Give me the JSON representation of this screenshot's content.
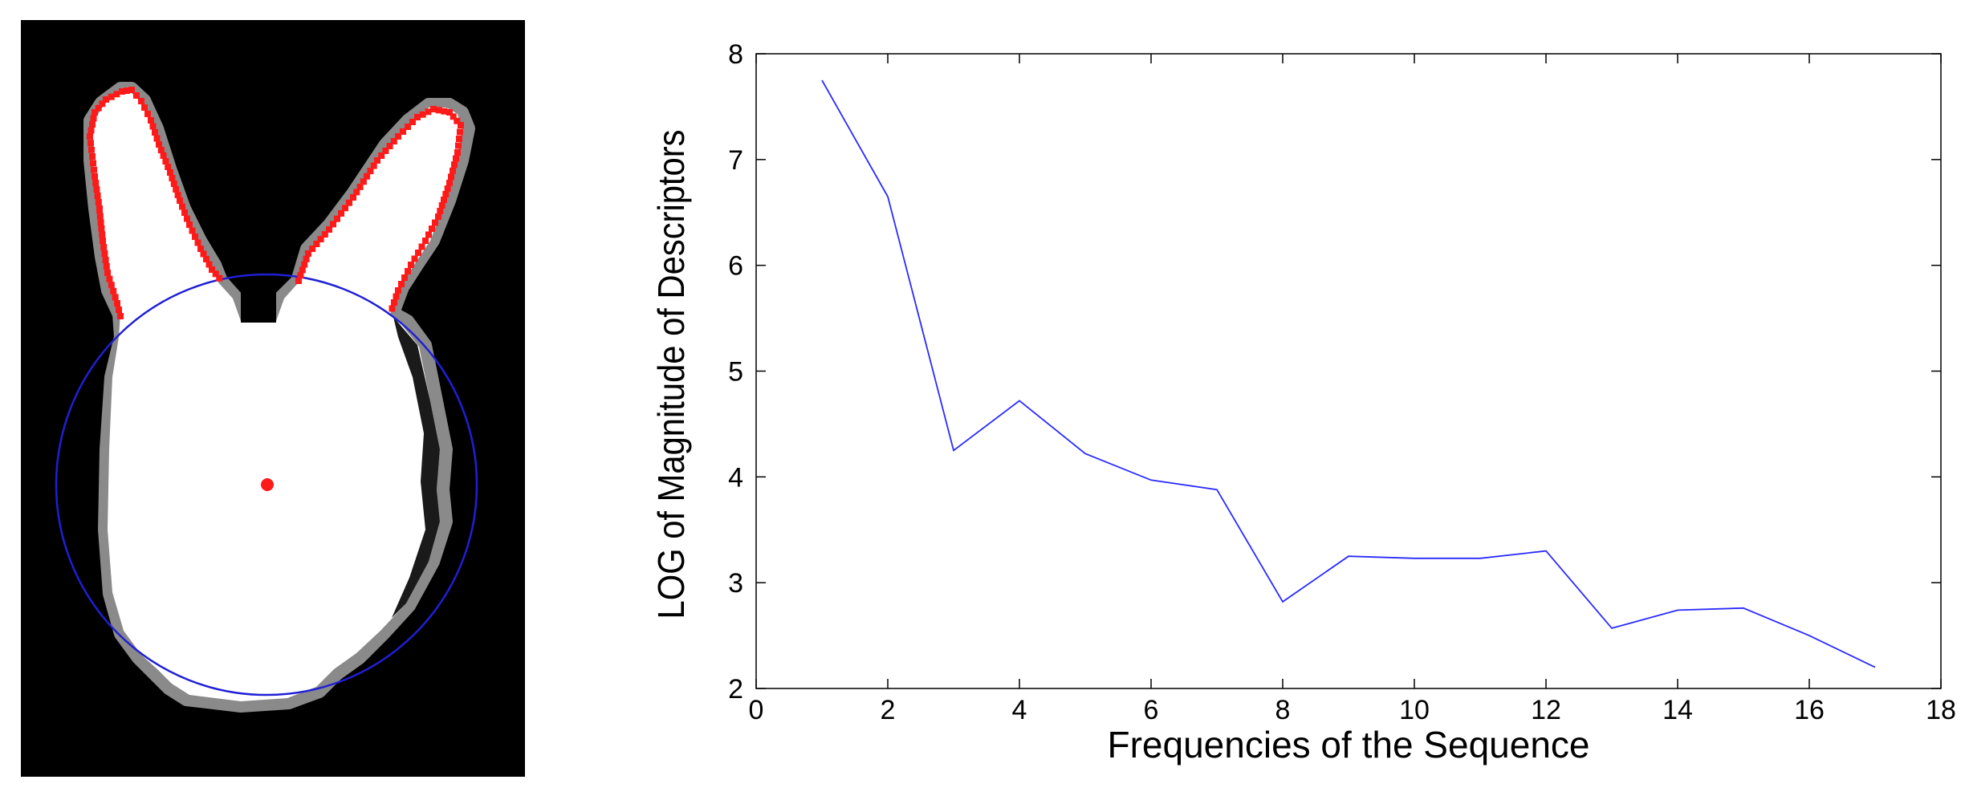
{
  "colors": {
    "background": "#ffffff",
    "image_black": "#000000",
    "silhouette_white": "#ffffff",
    "contour_points": "#ff1a1a",
    "fitted_circle": "#1f1fd6",
    "centroid": "#ff1a1a",
    "series_line": "#2a2aff",
    "axes": "#000000"
  },
  "chart_data": [
    {
      "type": "image",
      "panel": "left",
      "content": "binary rabbit silhouette with red contour sample points, a blue fitted circle over the head region and a red centroid dot"
    },
    {
      "type": "line",
      "title": "",
      "xlabel": "Frequencies of the Sequence",
      "ylabel": "LOG of Magnitude of Descriptors",
      "xlim": [
        0,
        18
      ],
      "ylim": [
        2,
        8
      ],
      "xticks": [
        0,
        2,
        4,
        6,
        8,
        10,
        12,
        14,
        16,
        18
      ],
      "yticks": [
        2,
        3,
        4,
        5,
        6,
        7,
        8
      ],
      "grid": false,
      "legend": "none",
      "series": [
        {
          "x": [
            1,
            2,
            3,
            4,
            5,
            6,
            7,
            8,
            9,
            10,
            11,
            12,
            13,
            14,
            15,
            16,
            17
          ],
          "y": [
            7.75,
            6.65,
            4.25,
            4.72,
            4.22,
            3.97,
            3.88,
            2.82,
            3.25,
            3.23,
            3.23,
            3.3,
            2.57,
            2.74,
            2.76,
            2.5,
            2.2
          ],
          "color": "#2a2aff"
        }
      ]
    }
  ]
}
